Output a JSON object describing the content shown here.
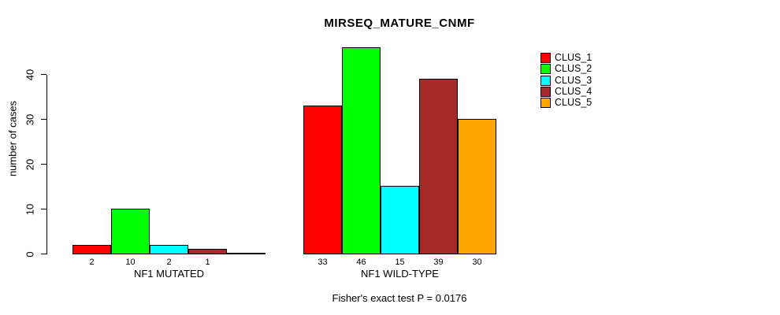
{
  "chart_data": {
    "type": "bar",
    "title": "MIRSEQ_MATURE_CNMF",
    "ylabel": "number of cases",
    "ylim": [
      0,
      46
    ],
    "yticks": [
      0,
      10,
      20,
      30,
      40
    ],
    "grid": false,
    "legend_position": "top-right",
    "series": [
      "CLUS_1",
      "CLUS_2",
      "CLUS_3",
      "CLUS_4",
      "CLUS_5"
    ],
    "colors": [
      "#FF0000",
      "#00FF00",
      "#00FFFF",
      "#A52A2A",
      "#FFA500"
    ],
    "groups": [
      {
        "label": "NF1 MUTATED",
        "values": [
          2,
          10,
          2,
          1,
          0
        ],
        "bar_labels": [
          "2",
          "10",
          "2",
          "1",
          ""
        ]
      },
      {
        "label": "NF1 WILD-TYPE",
        "values": [
          33,
          46,
          15,
          39,
          30
        ],
        "bar_labels": [
          "33",
          "46",
          "15",
          "39",
          "30"
        ]
      }
    ],
    "annotation": "Fisher's exact test P = 0.0176"
  }
}
